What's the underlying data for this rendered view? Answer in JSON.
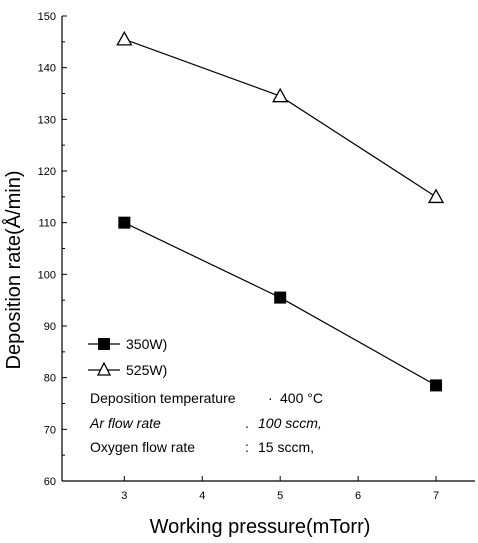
{
  "chart_data": {
    "type": "line",
    "xlabel": "Working pressure(mTorr)",
    "ylabel": "Deposition rate(Å/min)",
    "xlim": [
      2.2,
      7.5
    ],
    "ylim": [
      60,
      150
    ],
    "xticks": [
      3,
      4,
      5,
      6,
      7
    ],
    "xtick_labels": [
      "3",
      "4",
      "5",
      "6",
      "7"
    ],
    "yticks": [
      60,
      70,
      80,
      90,
      100,
      110,
      120,
      130,
      140,
      150
    ],
    "ytick_labels": [
      "60",
      "70",
      "80",
      "90",
      "100",
      "110",
      "120",
      "130",
      "140",
      "150"
    ],
    "grid": false,
    "legend_position": "lower-left",
    "series": [
      {
        "name": "350W)",
        "marker": "filled-square",
        "x": [
          3,
          5,
          7
        ],
        "y": [
          110,
          95.5,
          78.5
        ]
      },
      {
        "name": "525W)",
        "marker": "open-triangle",
        "x": [
          3,
          5,
          7
        ],
        "y": [
          145.5,
          134.5,
          115
        ]
      }
    ],
    "annotations": [
      {
        "label": "Deposition temperature",
        "sep": "·",
        "value": "400 °C",
        "italic": false
      },
      {
        "label": "Ar flow rate",
        "sep": ".",
        "value": "100 sccm,",
        "italic": true
      },
      {
        "label": "Oxygen flow rate",
        "sep": ":",
        "value": "15 sccm,",
        "italic": false
      }
    ]
  },
  "colors": {
    "line": "#000000",
    "background": "#ffffff"
  }
}
